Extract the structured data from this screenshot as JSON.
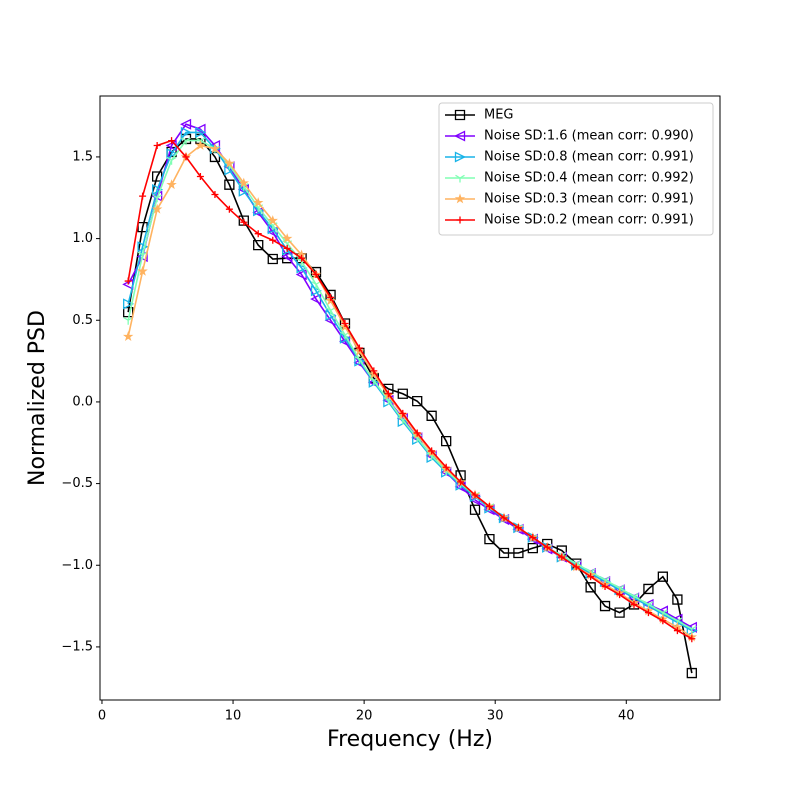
{
  "chart_data": {
    "type": "line",
    "xlabel": "Frequency (Hz)",
    "ylabel": "Normalized PSD",
    "x": [
      2.0,
      3.1,
      4.21,
      5.31,
      6.41,
      7.51,
      8.62,
      9.72,
      10.82,
      11.92,
      13.03,
      14.13,
      15.23,
      16.33,
      17.44,
      18.54,
      19.64,
      20.74,
      21.85,
      22.95,
      24.05,
      25.15,
      26.26,
      27.36,
      28.46,
      29.56,
      30.67,
      31.77,
      32.87,
      33.97,
      35.08,
      36.18,
      37.28,
      38.38,
      39.49,
      40.59,
      41.69,
      42.79,
      43.9,
      45.0
    ],
    "series": [
      {
        "name": "MEG",
        "color": "#000000",
        "marker": "square",
        "values": [
          0.55,
          1.07,
          1.38,
          1.53,
          1.61,
          1.61,
          1.5,
          1.33,
          1.11,
          0.96,
          0.875,
          0.88,
          0.88,
          0.795,
          0.655,
          0.48,
          0.3,
          0.145,
          0.08,
          0.05,
          0.005,
          -0.085,
          -0.24,
          -0.45,
          -0.66,
          -0.84,
          -0.925,
          -0.925,
          -0.895,
          -0.87,
          -0.91,
          -0.99,
          -1.135,
          -1.25,
          -1.29,
          -1.24,
          -1.145,
          -1.07,
          -1.21,
          -1.66
        ]
      },
      {
        "name": "Noise SD:1.6 (mean corr: 0.990)",
        "color": "#8000ff",
        "marker": "triangle-left",
        "values": [
          0.72,
          0.89,
          1.26,
          1.57,
          1.7,
          1.67,
          1.57,
          1.44,
          1.3,
          1.16,
          1.04,
          0.89,
          0.78,
          0.63,
          0.5,
          0.37,
          0.24,
          0.12,
          0.01,
          -0.1,
          -0.22,
          -0.33,
          -0.43,
          -0.52,
          -0.6,
          -0.66,
          -0.72,
          -0.78,
          -0.84,
          -0.9,
          -0.95,
          -1.0,
          -1.05,
          -1.1,
          -1.15,
          -1.2,
          -1.24,
          -1.28,
          -1.33,
          -1.38
        ]
      },
      {
        "name": "Noise SD:0.8 (mean corr: 0.991)",
        "color": "#18b4e8",
        "marker": "triangle-right",
        "values": [
          0.6,
          0.95,
          1.3,
          1.52,
          1.65,
          1.65,
          1.55,
          1.42,
          1.29,
          1.17,
          1.06,
          0.93,
          0.82,
          0.68,
          0.53,
          0.39,
          0.25,
          0.12,
          0.0,
          -0.12,
          -0.23,
          -0.34,
          -0.43,
          -0.51,
          -0.58,
          -0.65,
          -0.71,
          -0.77,
          -0.83,
          -0.89,
          -0.95,
          -1.0,
          -1.05,
          -1.1,
          -1.15,
          -1.2,
          -1.25,
          -1.3,
          -1.35,
          -1.4
        ]
      },
      {
        "name": "Noise SD:0.4 (mean corr: 0.992)",
        "color": "#80ffb4",
        "marker": "tri-down",
        "values": [
          0.5,
          0.9,
          1.25,
          1.48,
          1.6,
          1.6,
          1.55,
          1.45,
          1.32,
          1.19,
          1.08,
          0.97,
          0.86,
          0.72,
          0.56,
          0.41,
          0.26,
          0.13,
          0.01,
          -0.11,
          -0.22,
          -0.33,
          -0.42,
          -0.5,
          -0.57,
          -0.64,
          -0.71,
          -0.77,
          -0.83,
          -0.89,
          -0.94,
          -0.99,
          -1.04,
          -1.09,
          -1.14,
          -1.19,
          -1.24,
          -1.29,
          -1.34,
          -1.39
        ]
      },
      {
        "name": "Noise SD:0.3 (mean corr: 0.991)",
        "color": "#ffb360",
        "marker": "star",
        "values": [
          0.4,
          0.8,
          1.18,
          1.33,
          1.5,
          1.57,
          1.55,
          1.46,
          1.34,
          1.22,
          1.11,
          1.0,
          0.9,
          0.78,
          0.62,
          0.46,
          0.31,
          0.17,
          0.04,
          -0.08,
          -0.2,
          -0.31,
          -0.41,
          -0.49,
          -0.57,
          -0.64,
          -0.71,
          -0.77,
          -0.83,
          -0.89,
          -0.95,
          -1.01,
          -1.06,
          -1.12,
          -1.17,
          -1.23,
          -1.28,
          -1.33,
          -1.38,
          -1.44
        ]
      },
      {
        "name": "Noise SD:0.2 (mean corr: 0.991)",
        "color": "#ff0000",
        "marker": "plus",
        "values": [
          0.74,
          1.26,
          1.57,
          1.6,
          1.5,
          1.38,
          1.27,
          1.18,
          1.1,
          1.03,
          0.99,
          0.94,
          0.88,
          0.78,
          0.64,
          0.48,
          0.33,
          0.19,
          0.05,
          -0.07,
          -0.19,
          -0.3,
          -0.4,
          -0.49,
          -0.57,
          -0.64,
          -0.71,
          -0.77,
          -0.83,
          -0.89,
          -0.95,
          -1.01,
          -1.07,
          -1.13,
          -1.18,
          -1.24,
          -1.29,
          -1.34,
          -1.4,
          -1.45
        ]
      }
    ],
    "xlim": [
      -0.15,
      47.15
    ],
    "ylim": [
      -1.825,
      1.873
    ],
    "xticks": [
      0,
      10,
      20,
      30,
      40
    ],
    "yticks": [
      {
        "value": -1.5,
        "label": "−1.5"
      },
      {
        "value": -1.0,
        "label": "−1.0"
      },
      {
        "value": -0.5,
        "label": "−0.5"
      },
      {
        "value": 0.0,
        "label": "0.0"
      },
      0.5,
      {
        "value": 1.0,
        "label": "1.0"
      },
      1.5
    ],
    "legend": "upper right",
    "grid": false
  }
}
